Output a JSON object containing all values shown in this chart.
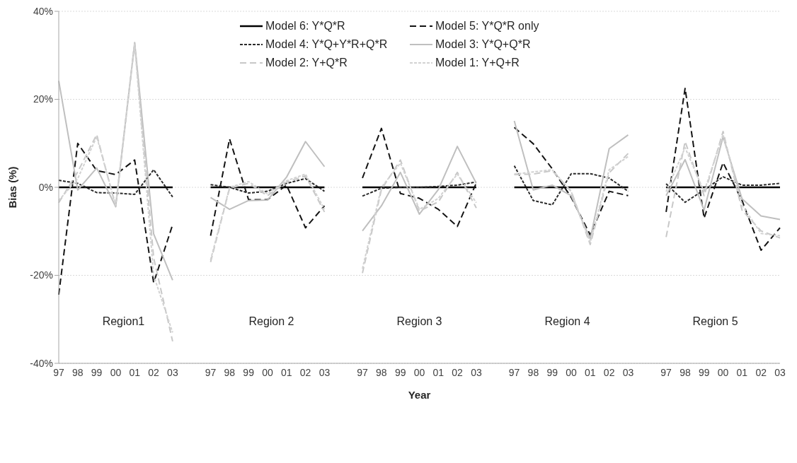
{
  "chart_data": {
    "type": "line",
    "xlabel": "Year",
    "ylabel": "Bias (%)",
    "categories": [
      "97",
      "98",
      "99",
      "00",
      "01",
      "02",
      "03",
      null,
      "97",
      "98",
      "99",
      "00",
      "01",
      "02",
      "03",
      null,
      "97",
      "98",
      "99",
      "00",
      "01",
      "02",
      "03",
      null,
      "97",
      "98",
      "99",
      "00",
      "01",
      "02",
      "03",
      null,
      "97",
      "98",
      "99",
      "00",
      "01",
      "02",
      "03"
    ],
    "series": [
      {
        "name": "Model 6: Y*Q*R",
        "color": "#000000",
        "line_style": "solid",
        "values": [
          0,
          0,
          0,
          0,
          0,
          0,
          0,
          null,
          0,
          0,
          0,
          0,
          0,
          0,
          0,
          null,
          0,
          0,
          0,
          0,
          0,
          0,
          0,
          null,
          0,
          0,
          0,
          0,
          0,
          0,
          0,
          null,
          0,
          0,
          0,
          0,
          0,
          0,
          0
        ]
      },
      {
        "name": "Model 5: Y*Q*R only",
        "color": "#141414",
        "line_style": "dashed",
        "values": [
          -24.4,
          10,
          3.8,
          2.9,
          6.2,
          -21.7,
          -8.5,
          null,
          -11,
          11,
          -2.8,
          -2.8,
          0.5,
          -9.2,
          -4.2,
          null,
          2.1,
          13.4,
          -1.4,
          -2.5,
          -5,
          -8.9,
          1,
          null,
          13.6,
          9.9,
          4.2,
          -2.3,
          -10.8,
          -0.9,
          -1.9,
          null,
          -5.6,
          22.5,
          -7,
          5.6,
          -3,
          -14.3,
          -9.2
        ]
      },
      {
        "name": "Model 4: Y*Q+Y*R+Q*R",
        "color": "#2a2a2a",
        "line_style": "dotted",
        "values": [
          1.6,
          0.9,
          -1.2,
          -1.3,
          -1.6,
          4,
          -2.2,
          null,
          0.6,
          0,
          -1.3,
          -0.9,
          0.9,
          2,
          -0.9,
          null,
          -2,
          -0.2,
          0,
          0,
          0.2,
          0.5,
          1.2,
          null,
          4.9,
          -3,
          -4,
          3.1,
          3.1,
          2.1,
          -0.9,
          null,
          0.8,
          -3.4,
          -0.6,
          2.4,
          0.5,
          0.5,
          0.9
        ]
      },
      {
        "name": "Model 3: Y*Q+Q*R",
        "color": "#bfbfbf",
        "line_style": "solid",
        "values": [
          24.2,
          -0.6,
          4.4,
          -4.4,
          32.9,
          -10.6,
          -21.1,
          null,
          -2.3,
          -5,
          -3,
          -2.9,
          2.3,
          10.4,
          4.7,
          null,
          -9.9,
          -4.2,
          3.4,
          -6.1,
          -0.5,
          9.3,
          0.9,
          null,
          15.1,
          -0.6,
          0.5,
          -1.9,
          -11.7,
          8.8,
          11.9,
          null,
          -1.9,
          6.3,
          -5.2,
          11.5,
          -2.6,
          -6.5,
          -7.3
        ]
      },
      {
        "name": "Model 2: Y+Q*R",
        "color": "#c8c8c8",
        "line_style": "dashed",
        "values": [
          -3.5,
          3.5,
          12,
          -4.4,
          32.8,
          -16,
          -35,
          null,
          -17,
          -0.2,
          0.9,
          -1.9,
          1.2,
          2.6,
          -5.6,
          null,
          -19.5,
          -0.5,
          6.2,
          -5.4,
          -3.3,
          3.4,
          -4.7,
          null,
          2.9,
          3,
          3.8,
          -0.9,
          -13,
          3.3,
          7.7,
          null,
          -11.3,
          10.4,
          -1.9,
          12.7,
          -5.2,
          -9.9,
          -11.5
        ]
      },
      {
        "name": "Model 1: Y+Q+R",
        "color": "#d2d2d2",
        "line_style": "dotted",
        "values": [
          -3,
          2,
          11.5,
          -4,
          32.5,
          -20,
          -33,
          null,
          -16.5,
          0,
          1.3,
          -1.5,
          1.5,
          3,
          -5,
          null,
          -18.5,
          0,
          5.5,
          -5,
          -2.5,
          3,
          -3.5,
          null,
          3,
          3.5,
          4,
          -1,
          -12.5,
          4,
          7,
          null,
          -1,
          9,
          -1,
          12,
          -4,
          -10.5,
          -11
        ]
      }
    ],
    "ylim": [
      -40,
      40
    ],
    "yticks": [
      {
        "value": -40,
        "label": "-40%"
      },
      {
        "value": -20,
        "label": "-20%"
      },
      {
        "value": 0,
        "label": "0%"
      },
      {
        "value": 20,
        "label": "20%"
      },
      {
        "value": 40,
        "label": "40%"
      }
    ],
    "grid": "y",
    "legend": "top",
    "marker": "none",
    "annotations": [
      "Region1",
      "Region 2",
      "Region 3",
      "Region 4",
      "Region 5"
    ]
  }
}
